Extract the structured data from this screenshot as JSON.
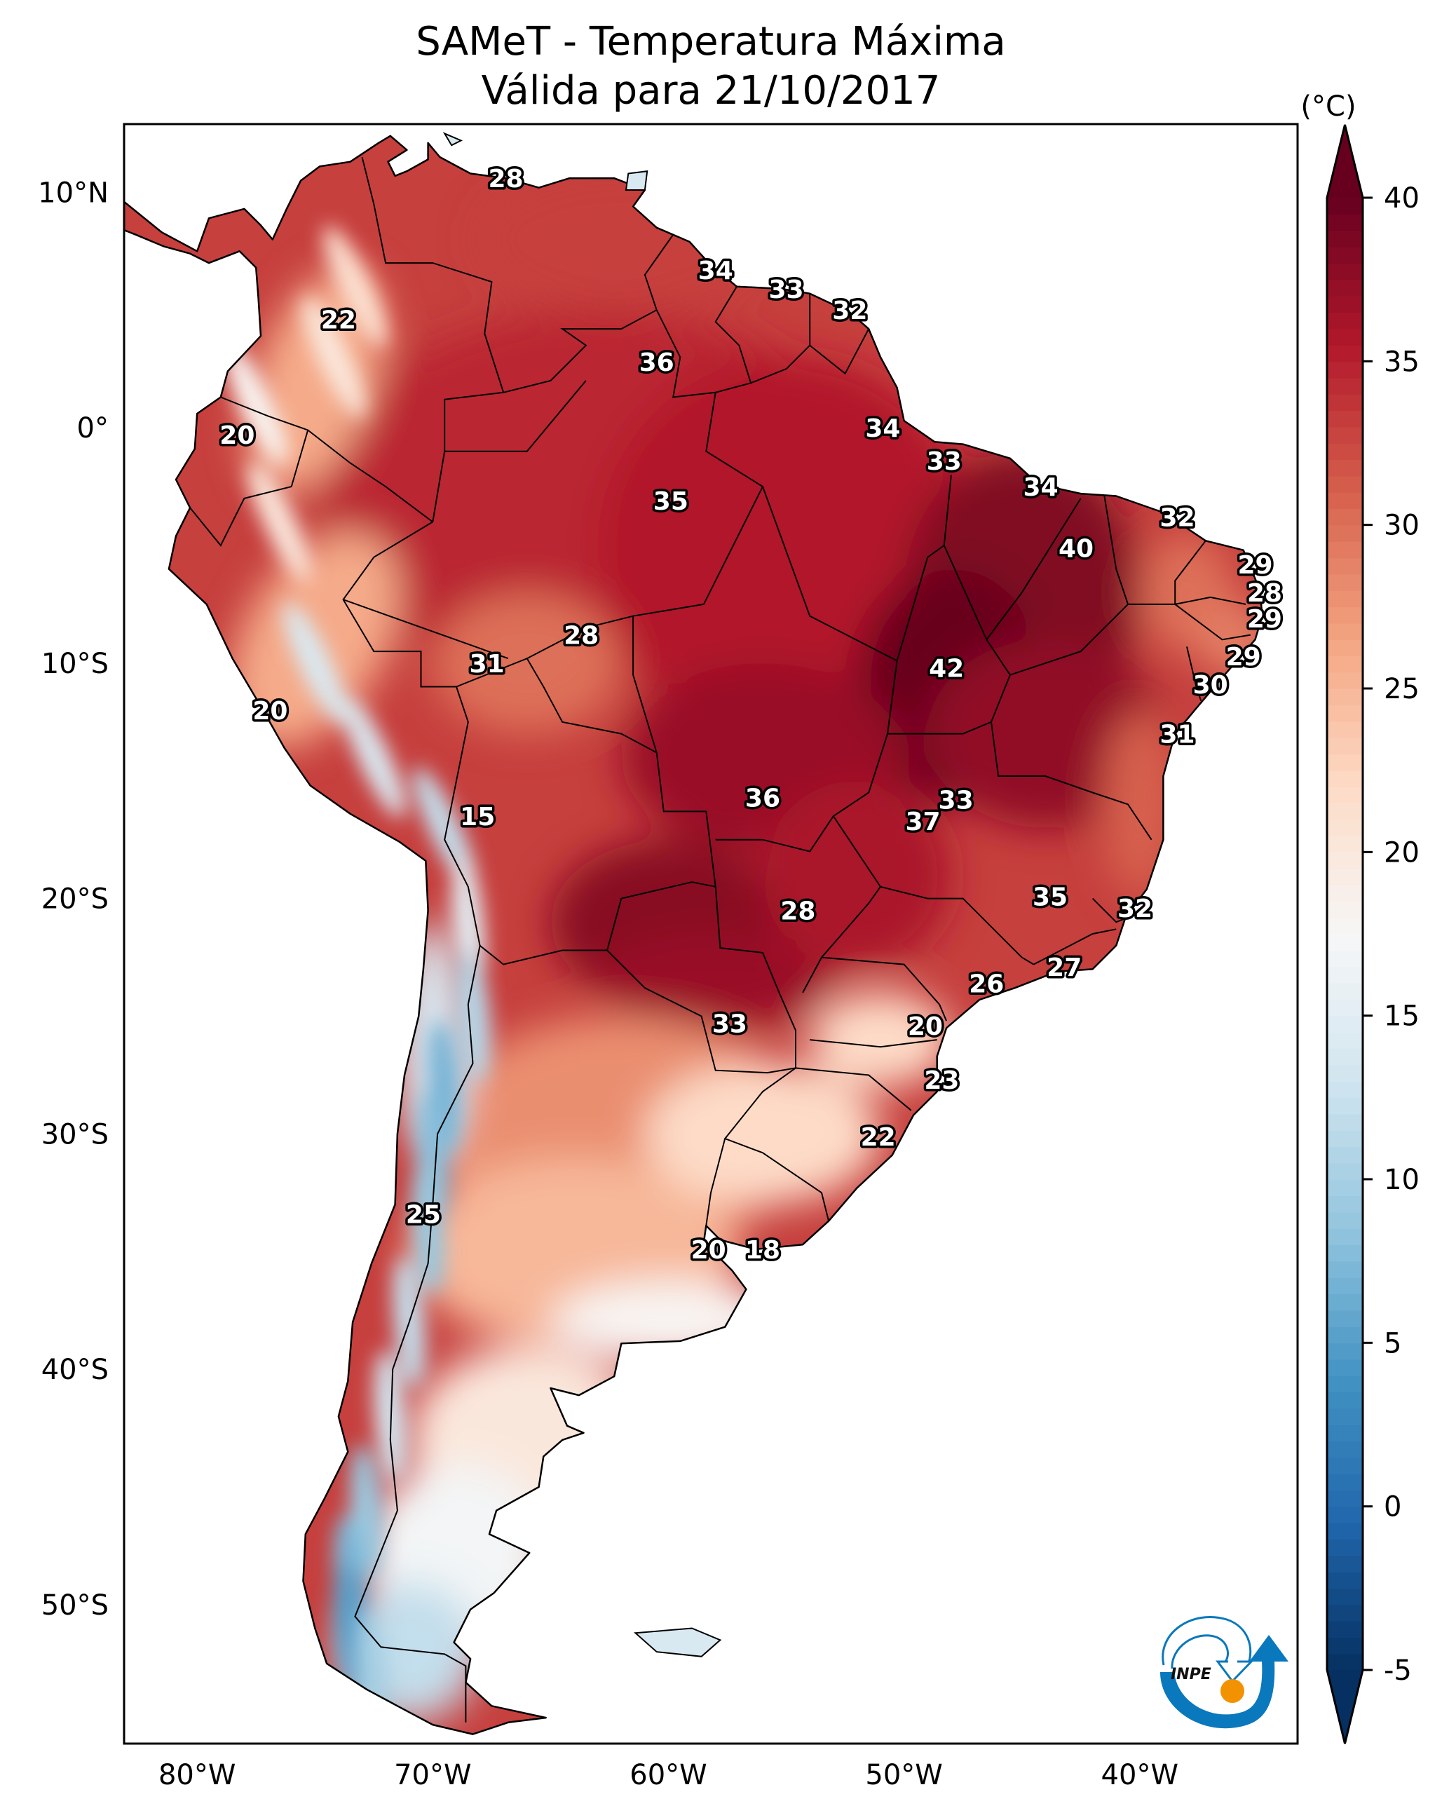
{
  "chart_data": {
    "type": "heatmap",
    "map_type": "filled contour map of daily maximum temperature over South America",
    "title": "SAMeT - Temperatura Máxima",
    "subtitle": "Válida para 21/10/2017",
    "xlabel": "",
    "ylabel": "",
    "x_range_lon": [
      -83.1,
      -33.3
    ],
    "y_range_lat": [
      -55.9,
      12.9
    ],
    "x_ticks": [
      {
        "value": -80,
        "label": "80°W"
      },
      {
        "value": -70,
        "label": "70°W"
      },
      {
        "value": -60,
        "label": "60°W"
      },
      {
        "value": -50,
        "label": "50°W"
      },
      {
        "value": -40,
        "label": "40°W"
      }
    ],
    "y_ticks": [
      {
        "value": 10,
        "label": "10°N"
      },
      {
        "value": 0,
        "label": "0°"
      },
      {
        "value": -10,
        "label": "10°S"
      },
      {
        "value": -20,
        "label": "20°S"
      },
      {
        "value": -30,
        "label": "30°S"
      },
      {
        "value": -40,
        "label": "40°S"
      },
      {
        "value": -50,
        "label": "50°S"
      }
    ],
    "colorbar": {
      "unit_label": "(°C)",
      "range": [
        -5,
        40
      ],
      "extend": "both",
      "colormap": "RdBu_r",
      "ticks": [
        {
          "value": 40,
          "label": "40"
        },
        {
          "value": 35,
          "label": "35"
        },
        {
          "value": 30,
          "label": "30"
        },
        {
          "value": 25,
          "label": "25"
        },
        {
          "value": 20,
          "label": "20"
        },
        {
          "value": 15,
          "label": "15"
        },
        {
          "value": 10,
          "label": "10"
        },
        {
          "value": 5,
          "label": "5"
        },
        {
          "value": 0,
          "label": "0"
        },
        {
          "value": -5,
          "label": "-5"
        }
      ]
    },
    "grid": false,
    "legend": "colorbar right",
    "annotations": [
      {
        "lon": -66.9,
        "lat": 10.6,
        "value": "28"
      },
      {
        "lon": -74.0,
        "lat": 4.6,
        "value": "22"
      },
      {
        "lon": -58.0,
        "lat": 6.7,
        "value": "34"
      },
      {
        "lon": -55.0,
        "lat": 5.9,
        "value": "33"
      },
      {
        "lon": -52.3,
        "lat": 5.0,
        "value": "32"
      },
      {
        "lon": -60.5,
        "lat": 2.8,
        "value": "36"
      },
      {
        "lon": -78.3,
        "lat": -0.3,
        "value": "20"
      },
      {
        "lon": -50.9,
        "lat": 0.0,
        "value": "34"
      },
      {
        "lon": -48.3,
        "lat": -1.4,
        "value": "33"
      },
      {
        "lon": -59.9,
        "lat": -3.1,
        "value": "35"
      },
      {
        "lon": -44.2,
        "lat": -2.5,
        "value": "34"
      },
      {
        "lon": -38.4,
        "lat": -3.8,
        "value": "32"
      },
      {
        "lon": -42.7,
        "lat": -5.1,
        "value": "40"
      },
      {
        "lon": -35.1,
        "lat": -5.8,
        "value": "29"
      },
      {
        "lon": -34.7,
        "lat": -7.0,
        "value": "28"
      },
      {
        "lon": -34.7,
        "lat": -8.1,
        "value": "29"
      },
      {
        "lon": -63.7,
        "lat": -8.8,
        "value": "28"
      },
      {
        "lon": -67.7,
        "lat": -10.0,
        "value": "31"
      },
      {
        "lon": -35.6,
        "lat": -9.7,
        "value": "29"
      },
      {
        "lon": -48.2,
        "lat": -10.2,
        "value": "42"
      },
      {
        "lon": -37.0,
        "lat": -10.9,
        "value": "30"
      },
      {
        "lon": -76.9,
        "lat": -12.0,
        "value": "20"
      },
      {
        "lon": -38.4,
        "lat": -13.0,
        "value": "31"
      },
      {
        "lon": -56.0,
        "lat": -15.7,
        "value": "36"
      },
      {
        "lon": -47.8,
        "lat": -15.8,
        "value": "33"
      },
      {
        "lon": -68.1,
        "lat": -16.5,
        "value": "15"
      },
      {
        "lon": -49.2,
        "lat": -16.7,
        "value": "37"
      },
      {
        "lon": -43.8,
        "lat": -19.9,
        "value": "35"
      },
      {
        "lon": -40.2,
        "lat": -20.4,
        "value": "32"
      },
      {
        "lon": -54.5,
        "lat": -20.5,
        "value": "28"
      },
      {
        "lon": -43.2,
        "lat": -22.9,
        "value": "27"
      },
      {
        "lon": -46.5,
        "lat": -23.6,
        "value": "26"
      },
      {
        "lon": -57.4,
        "lat": -25.3,
        "value": "33"
      },
      {
        "lon": -49.1,
        "lat": -25.4,
        "value": "20"
      },
      {
        "lon": -48.4,
        "lat": -27.7,
        "value": "23"
      },
      {
        "lon": -51.1,
        "lat": -30.1,
        "value": "22"
      },
      {
        "lon": -70.4,
        "lat": -33.4,
        "value": "25"
      },
      {
        "lon": -58.3,
        "lat": -34.9,
        "value": "20"
      },
      {
        "lon": -56.0,
        "lat": -34.9,
        "value": "18"
      }
    ],
    "temperature_zones": [
      {
        "region": "Tocantins / Piauí / Bahia interior",
        "approx_value": 40
      },
      {
        "region": "Mato Grosso / Goiás / Paraguay Chaco",
        "approx_value": 37
      },
      {
        "region": "Amazon basin",
        "approx_value": 35
      },
      {
        "region": "Northeast coast",
        "approx_value": 29
      },
      {
        "region": "Central Argentina",
        "approx_value": 25
      },
      {
        "region": "Southern Brazil / Uruguay",
        "approx_value": 21
      },
      {
        "region": "Patagonia",
        "approx_value": 18
      },
      {
        "region": "Andes high terrain",
        "approx_value": 8
      }
    ]
  },
  "logo": {
    "name": "INPE",
    "text": "INPE",
    "colors": {
      "blue": "#0a78bd",
      "orange": "#f39200"
    }
  }
}
